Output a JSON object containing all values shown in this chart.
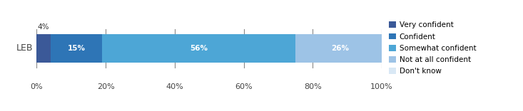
{
  "categories": [
    "LEB"
  ],
  "segments": [
    {
      "label": "Very confident",
      "value": 4,
      "color": "#3B5998"
    },
    {
      "label": "Confident",
      "value": 15,
      "color": "#2E75B6"
    },
    {
      "label": "Somewhat confident",
      "value": 56,
      "color": "#4DA6D6"
    },
    {
      "label": "Not at all confident",
      "value": 26,
      "color": "#9DC3E6"
    },
    {
      "label": "Don't know",
      "value": 0,
      "color": "#D9E8F5"
    }
  ],
  "xlim": [
    0,
    100
  ],
  "xticks": [
    0,
    20,
    40,
    60,
    80,
    100
  ],
  "xticklabels": [
    "0%",
    "20%",
    "40%",
    "60%",
    "80%",
    "100%"
  ],
  "bar_height": 0.45,
  "outside_label": {
    "segment_index": 0,
    "text": "4%"
  },
  "segment_labels": [
    {
      "segment_index": 1,
      "text": "15%"
    },
    {
      "segment_index": 2,
      "text": "56%"
    },
    {
      "segment_index": 3,
      "text": "26%"
    }
  ],
  "label_color": "#ffffff",
  "background_color": "#ffffff",
  "legend_fontsize": 7.5,
  "tick_fontsize": 8,
  "ylabel_fontsize": 9,
  "figwidth": 7.33,
  "figheight": 1.56
}
